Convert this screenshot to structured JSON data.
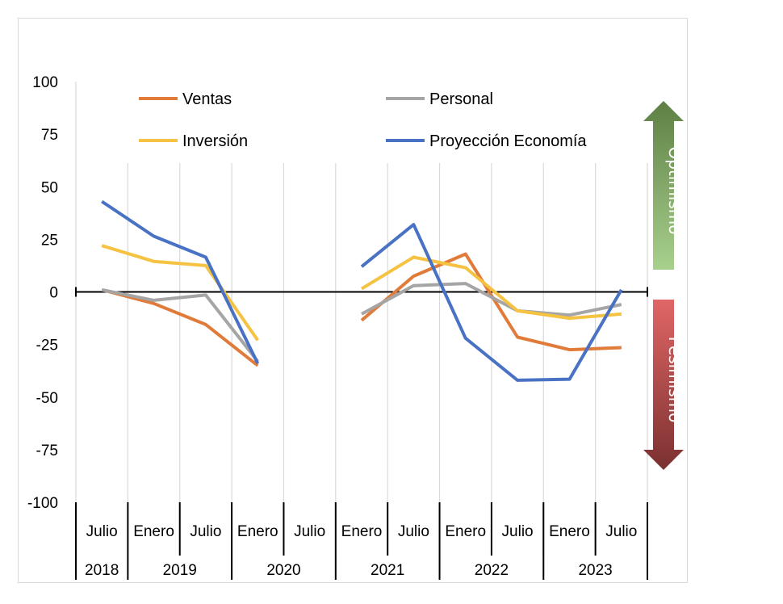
{
  "chart_data": {
    "type": "line",
    "title": "",
    "xlabel": "",
    "ylabel": "",
    "ylim": [
      -100,
      100
    ],
    "yticks": [
      100,
      75,
      50,
      25,
      0,
      -25,
      -50,
      -75,
      -100
    ],
    "ytick_labels": [
      "100",
      "75",
      "50",
      "25",
      "0",
      "-25",
      "-50",
      "-75",
      "-100"
    ],
    "categories": [
      "Julio",
      "Enero",
      "Julio",
      "Enero",
      "Julio",
      "Enero",
      "Julio",
      "Enero",
      "Julio",
      "Enero",
      "Julio"
    ],
    "years": [
      {
        "label": "2018",
        "span": [
          0,
          0
        ]
      },
      {
        "label": "2019",
        "span": [
          1,
          2
        ]
      },
      {
        "label": "2020",
        "span": [
          3,
          4
        ]
      },
      {
        "label": "2021",
        "span": [
          5,
          6
        ]
      },
      {
        "label": "2022",
        "span": [
          7,
          8
        ]
      },
      {
        "label": "2023",
        "span": [
          9,
          10
        ]
      }
    ],
    "grid": true,
    "legend_position": "top",
    "series": [
      {
        "name": "Ventas",
        "color": "#e07b39",
        "values": [
          1,
          -5.5,
          -15.5,
          -35,
          null,
          -13.5,
          7.5,
          18,
          -21.5,
          -27.5,
          -26.5
        ]
      },
      {
        "name": "Personal",
        "color": "#a5a5a5",
        "values": [
          1,
          -4,
          -1.5,
          -33,
          null,
          -10.5,
          3,
          4,
          -9,
          -11,
          -6
        ]
      },
      {
        "name": "Inversión",
        "color": "#f5c242",
        "values": [
          22,
          14.5,
          12.5,
          -23,
          null,
          1.5,
          16.5,
          11.5,
          -9,
          -12.5,
          -10.5
        ]
      },
      {
        "name": "Proyección Economía",
        "color": "#4a72c4",
        "values": [
          43,
          26.5,
          16.5,
          -34,
          null,
          12,
          32,
          -22,
          -42,
          -41.5,
          1
        ]
      }
    ],
    "annotations": [
      {
        "label": "Optimismo",
        "direction": "up",
        "color_top": "#5e7f45",
        "color_bottom": "#a8d08d"
      },
      {
        "label": "Pesimismo",
        "direction": "down",
        "color_top": "#e06666",
        "color_bottom": "#7b3030"
      }
    ]
  }
}
